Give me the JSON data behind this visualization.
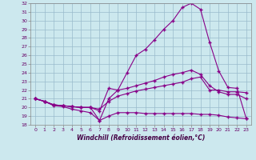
{
  "xlabel": "Windchill (Refroidissement éolien,°C)",
  "background_color": "#cce8ee",
  "line_color": "#880088",
  "xlim": [
    -0.5,
    23.5
  ],
  "ylim": [
    18,
    32
  ],
  "yticks": [
    18,
    19,
    20,
    21,
    22,
    23,
    24,
    25,
    26,
    27,
    28,
    29,
    30,
    31,
    32
  ],
  "xticks": [
    0,
    1,
    2,
    3,
    4,
    5,
    6,
    7,
    8,
    9,
    10,
    11,
    12,
    13,
    14,
    15,
    16,
    17,
    18,
    19,
    20,
    21,
    22,
    23
  ],
  "line1_x": [
    0,
    1,
    2,
    3,
    4,
    5,
    6,
    7,
    8,
    9,
    10,
    11,
    12,
    13,
    14,
    15,
    16,
    17,
    18,
    19,
    20,
    21,
    22,
    23
  ],
  "line1_y": [
    21.0,
    20.7,
    20.2,
    20.1,
    19.8,
    19.6,
    19.4,
    18.5,
    19.0,
    19.4,
    19.4,
    19.4,
    19.3,
    19.3,
    19.3,
    19.3,
    19.3,
    19.3,
    19.2,
    19.2,
    19.1,
    18.9,
    18.8,
    18.7
  ],
  "line2_x": [
    0,
    1,
    2,
    3,
    4,
    5,
    6,
    7,
    8,
    9,
    10,
    11,
    12,
    13,
    14,
    15,
    16,
    17,
    18,
    19,
    20,
    21,
    22,
    23
  ],
  "line2_y": [
    21.0,
    20.7,
    20.3,
    20.2,
    20.1,
    20.0,
    20.0,
    19.8,
    20.7,
    21.3,
    21.6,
    21.9,
    22.1,
    22.3,
    22.5,
    22.7,
    22.9,
    23.3,
    23.5,
    22.0,
    22.0,
    21.8,
    21.8,
    21.7
  ],
  "line3_x": [
    0,
    1,
    2,
    3,
    4,
    5,
    6,
    7,
    8,
    9,
    10,
    11,
    12,
    13,
    14,
    15,
    16,
    17,
    18,
    19,
    20,
    21,
    22,
    23
  ],
  "line3_y": [
    21.0,
    20.7,
    20.3,
    20.2,
    20.1,
    20.0,
    20.0,
    19.6,
    22.2,
    22.0,
    22.2,
    22.5,
    22.8,
    23.1,
    23.5,
    23.8,
    24.0,
    24.3,
    23.8,
    22.5,
    21.8,
    21.5,
    21.5,
    21.0
  ],
  "line4_x": [
    0,
    1,
    2,
    3,
    4,
    5,
    6,
    7,
    8,
    9,
    10,
    11,
    12,
    13,
    14,
    15,
    16,
    17,
    18,
    19,
    20,
    21,
    22,
    23
  ],
  "line4_y": [
    21.0,
    20.7,
    20.3,
    20.2,
    20.1,
    20.0,
    20.0,
    18.5,
    21.0,
    22.0,
    24.0,
    26.0,
    26.7,
    27.8,
    29.0,
    30.0,
    31.5,
    32.0,
    31.3,
    27.5,
    24.2,
    22.3,
    22.2,
    18.7
  ],
  "grid_color": "#99bbcc",
  "marker": "+"
}
